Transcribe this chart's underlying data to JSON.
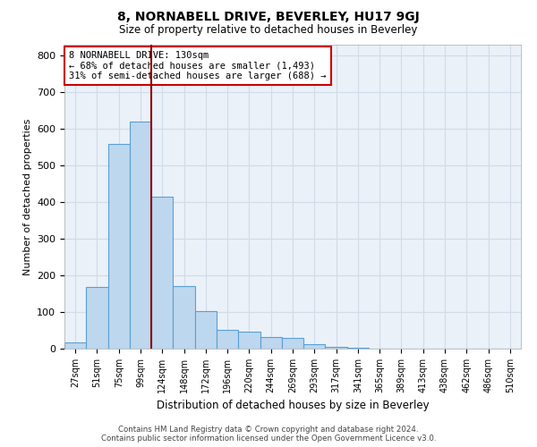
{
  "title": "8, NORNABELL DRIVE, BEVERLEY, HU17 9GJ",
  "subtitle": "Size of property relative to detached houses in Beverley",
  "xlabel": "Distribution of detached houses by size in Beverley",
  "ylabel": "Number of detached properties",
  "footer_line1": "Contains HM Land Registry data © Crown copyright and database right 2024.",
  "footer_line2": "Contains public sector information licensed under the Open Government Licence v3.0.",
  "categories": [
    "27sqm",
    "51sqm",
    "75sqm",
    "99sqm",
    "124sqm",
    "148sqm",
    "172sqm",
    "196sqm",
    "220sqm",
    "244sqm",
    "269sqm",
    "293sqm",
    "317sqm",
    "341sqm",
    "365sqm",
    "389sqm",
    "413sqm",
    "438sqm",
    "462sqm",
    "486sqm",
    "510sqm"
  ],
  "values": [
    18,
    168,
    560,
    620,
    415,
    170,
    103,
    52,
    47,
    32,
    30,
    13,
    5,
    2,
    1,
    0,
    0,
    0,
    0,
    0,
    0
  ],
  "bar_color": "#bdd7ee",
  "bar_edge_color": "#5a9fd4",
  "grid_color": "#d0dce8",
  "background_color": "#eaf1f8",
  "vline_color": "#8b0000",
  "annotation_text": "8 NORNABELL DRIVE: 130sqm\n← 68% of detached houses are smaller (1,493)\n31% of semi-detached houses are larger (688) →",
  "annotation_box_color": "#ffffff",
  "annotation_box_edge": "#cc0000",
  "ylim": [
    0,
    830
  ],
  "yticks": [
    0,
    100,
    200,
    300,
    400,
    500,
    600,
    700,
    800
  ]
}
